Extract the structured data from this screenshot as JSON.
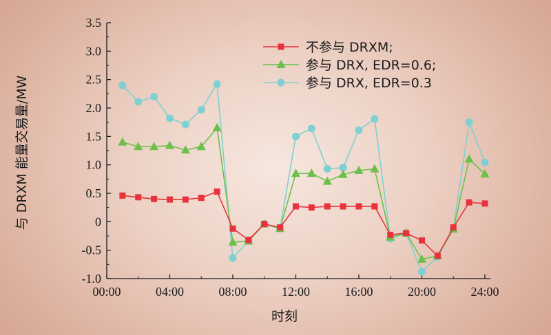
{
  "chart_data": {
    "type": "line",
    "xlabel": "时刻",
    "ylabel": "与 DRXM 能量交易量/MW",
    "xlim": [
      0,
      24
    ],
    "ylim": [
      -1.0,
      3.5
    ],
    "x_ticks": [
      0,
      4,
      8,
      12,
      16,
      20,
      24
    ],
    "x_tick_labels": [
      "00:00",
      "04:00",
      "08:00",
      "12:00",
      "16:00",
      "20:00",
      "24:00"
    ],
    "y_ticks": [
      -1.0,
      -0.5,
      0,
      0.5,
      1.0,
      1.5,
      2.0,
      2.5,
      3.0,
      3.5
    ],
    "y_tick_labels": [
      "-1.0",
      "-0.5",
      "0",
      "0.5",
      "1.0",
      "1.5",
      "2.0",
      "2.5",
      "3.0",
      "3.5"
    ],
    "grid": false,
    "legend_position": "top-right",
    "x": [
      1,
      2,
      3,
      4,
      5,
      6,
      7,
      8,
      9,
      10,
      11,
      12,
      13,
      14,
      15,
      16,
      17,
      18,
      19,
      20,
      21,
      22,
      23,
      24
    ],
    "series": [
      {
        "name": "不参与 DRXM;",
        "color": "#e8323c",
        "marker": "square",
        "values": [
          0.46,
          0.43,
          0.4,
          0.39,
          0.39,
          0.42,
          0.53,
          -0.12,
          -0.32,
          -0.04,
          -0.1,
          0.27,
          0.25,
          0.27,
          0.27,
          0.27,
          0.27,
          -0.23,
          -0.2,
          -0.33,
          -0.6,
          -0.1,
          0.34,
          0.32
        ]
      },
      {
        "name": "参与 DRX, EDR=0.6;",
        "color": "#6cc04a",
        "marker": "triangle",
        "values": [
          1.4,
          1.32,
          1.32,
          1.34,
          1.26,
          1.32,
          1.65,
          -0.36,
          -0.34,
          -0.04,
          -0.12,
          0.85,
          0.85,
          0.71,
          0.83,
          0.9,
          0.93,
          -0.27,
          -0.2,
          -0.66,
          -0.6,
          -0.13,
          1.1,
          0.84
        ]
      },
      {
        "name": "参与 DRX, EDR=0.3",
        "color": "#7fd0d2",
        "marker": "circle",
        "values": [
          2.4,
          2.11,
          2.2,
          1.82,
          1.71,
          1.97,
          2.42,
          -0.64,
          -0.33,
          -0.04,
          -0.12,
          1.5,
          1.64,
          0.93,
          0.95,
          1.61,
          1.81,
          -0.3,
          -0.2,
          -0.88,
          -0.62,
          -0.13,
          1.75,
          1.04
        ]
      }
    ]
  }
}
